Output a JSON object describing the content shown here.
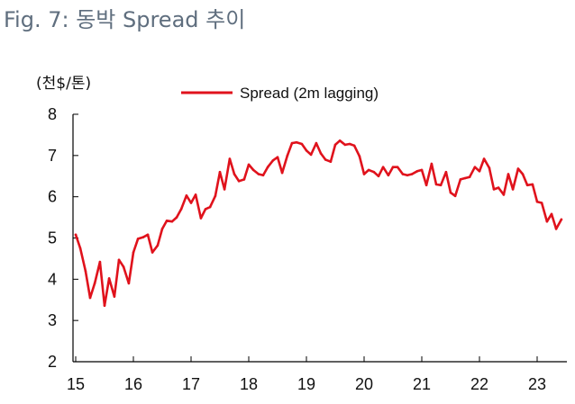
{
  "figure": {
    "title": "Fig. 7: 동박 Spread 추이"
  },
  "chart_data": {
    "type": "line",
    "title": "Fig. 7: 동박 Spread 추이",
    "ylabel": "(천$/톤)",
    "xlabel": "",
    "ylim": [
      2,
      8
    ],
    "xlim": [
      15,
      23.5
    ],
    "yticks": [
      2,
      3,
      4,
      5,
      6,
      7,
      8
    ],
    "xticks": [
      15,
      16,
      17,
      18,
      19,
      20,
      21,
      22,
      23
    ],
    "xtick_labels": [
      "15",
      "16",
      "17",
      "18",
      "19",
      "20",
      "21",
      "22",
      "23"
    ],
    "legend": {
      "position": "top-center"
    },
    "grid": false,
    "series": [
      {
        "name": "Spread (2m lagging)",
        "color": "#e0121c",
        "x": [
          15.0,
          15.08,
          15.17,
          15.25,
          15.33,
          15.42,
          15.5,
          15.58,
          15.67,
          15.75,
          15.83,
          15.92,
          16.0,
          16.08,
          16.17,
          16.25,
          16.33,
          16.42,
          16.5,
          16.58,
          16.67,
          16.75,
          16.83,
          16.92,
          17.0,
          17.08,
          17.17,
          17.25,
          17.33,
          17.42,
          17.5,
          17.58,
          17.67,
          17.75,
          17.83,
          17.92,
          18.0,
          18.08,
          18.17,
          18.25,
          18.33,
          18.42,
          18.5,
          18.58,
          18.67,
          18.75,
          18.83,
          18.92,
          19.0,
          19.08,
          19.17,
          19.25,
          19.33,
          19.42,
          19.5,
          19.58,
          19.67,
          19.75,
          19.83,
          19.92,
          20.0,
          20.08,
          20.17,
          20.25,
          20.33,
          20.42,
          20.5,
          20.58,
          20.67,
          20.75,
          20.83,
          20.92,
          21.0,
          21.08,
          21.17,
          21.25,
          21.33,
          21.42,
          21.5,
          21.58,
          21.67,
          21.75,
          21.83,
          21.92,
          22.0,
          22.08,
          22.17,
          22.25,
          22.33,
          22.42,
          22.5,
          22.58,
          22.67,
          22.75,
          22.83,
          22.92,
          23.0,
          23.08,
          23.17,
          23.25,
          23.33,
          23.42
        ],
        "values": [
          5.08,
          4.75,
          4.2,
          3.55,
          3.9,
          4.42,
          3.36,
          4.02,
          3.58,
          4.47,
          4.3,
          3.9,
          4.65,
          4.98,
          5.02,
          5.08,
          4.65,
          4.82,
          5.22,
          5.42,
          5.4,
          5.5,
          5.7,
          6.03,
          5.85,
          6.05,
          5.48,
          5.7,
          5.75,
          6.02,
          6.6,
          6.18,
          6.92,
          6.55,
          6.38,
          6.42,
          6.78,
          6.65,
          6.55,
          6.52,
          6.72,
          6.88,
          6.96,
          6.58,
          7.0,
          7.3,
          7.32,
          7.28,
          7.12,
          7.02,
          7.3,
          7.05,
          6.9,
          6.85,
          7.26,
          7.36,
          7.26,
          7.28,
          7.24,
          6.98,
          6.55,
          6.65,
          6.6,
          6.5,
          6.72,
          6.52,
          6.72,
          6.72,
          6.55,
          6.52,
          6.55,
          6.62,
          6.65,
          6.28,
          6.8,
          6.3,
          6.28,
          6.6,
          6.1,
          6.02,
          6.42,
          6.45,
          6.48,
          6.72,
          6.62,
          6.92,
          6.7,
          6.18,
          6.22,
          6.05,
          6.55,
          6.18,
          6.68,
          6.55,
          6.28,
          6.3,
          5.88,
          5.85,
          5.4,
          5.58,
          5.22,
          5.45
        ]
      }
    ]
  }
}
